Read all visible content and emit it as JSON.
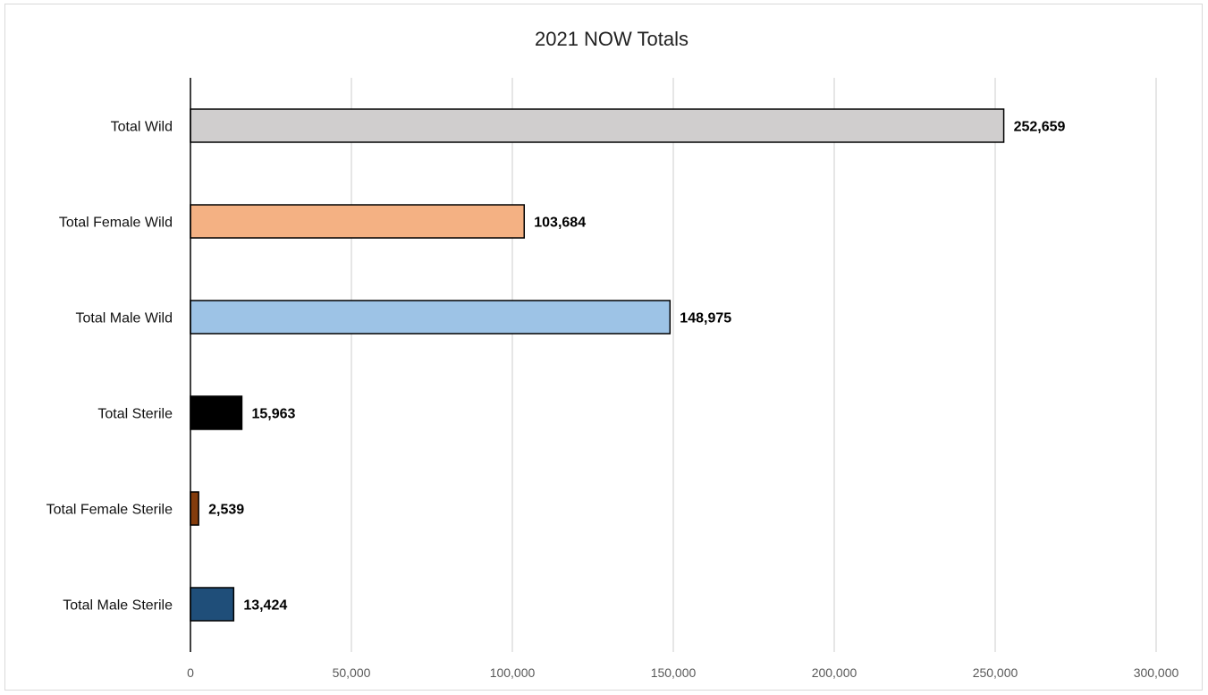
{
  "chart_data": {
    "type": "bar",
    "orientation": "horizontal",
    "title": "2021 NOW Totals",
    "xlabel": "",
    "ylabel": "",
    "categories": [
      "Total Wild",
      "Total Female Wild",
      "Total Male Wild",
      "Total Sterile",
      "Total Female Sterile",
      "Total Male Sterile"
    ],
    "values": [
      252659,
      103684,
      148975,
      15963,
      2539,
      13424
    ],
    "data_labels": [
      "252,659",
      "103,684",
      "148,975",
      "15,963",
      "2,539",
      "13,424"
    ],
    "colors": [
      "#d0cece",
      "#f4b183",
      "#9dc3e6",
      "#000000",
      "#843c0c",
      "#1f4e79"
    ],
    "xlim": [
      0,
      300000
    ],
    "x_ticks": [
      0,
      50000,
      100000,
      150000,
      200000,
      250000,
      300000
    ],
    "x_tick_labels": [
      "0",
      "50,000",
      "100,000",
      "150,000",
      "200,000",
      "250,000",
      "300,000"
    ],
    "grid": "vertical",
    "legend": "none"
  }
}
